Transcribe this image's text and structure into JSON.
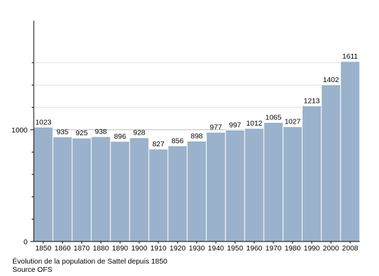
{
  "chart_data": {
    "type": "bar",
    "categories": [
      "1850",
      "1860",
      "1870",
      "1880",
      "1890",
      "1900",
      "1910",
      "1920",
      "1930",
      "1940",
      "1950",
      "1960",
      "1970",
      "1980",
      "1990",
      "2000",
      "2008"
    ],
    "values": [
      1023,
      935,
      925,
      938,
      896,
      928,
      827,
      856,
      898,
      977,
      997,
      1012,
      1065,
      1027,
      1213,
      1402,
      1611
    ],
    "data_labels": [
      "1023",
      "935",
      "925",
      "938",
      "896",
      "928",
      "827",
      "856",
      "898",
      "977",
      "997",
      "1012",
      "1065",
      "1027",
      "1213",
      "1402",
      "1611"
    ],
    "y_ticks": [
      0,
      1000
    ],
    "y_tick_labels": [
      "0",
      "1000"
    ],
    "ylim": [
      0,
      1700
    ],
    "minor_gridlines": [
      200,
      400,
      600,
      800,
      1000,
      1200,
      1400,
      1600
    ],
    "grid": true,
    "bar_color": "#9ab2cb",
    "bar_edge_color": "#ffffff",
    "gridline_color": "#cccccc"
  },
  "caption": {
    "line1": "Évolution de la population de Sattel depuis 1850",
    "line2": "Source OFS"
  }
}
